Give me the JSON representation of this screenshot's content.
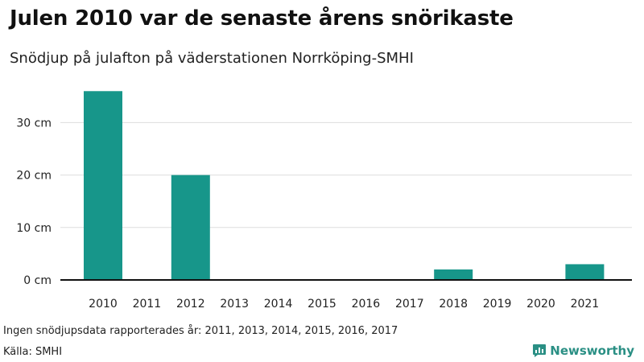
{
  "title": "Julen 2010 var de senaste årens snörikaste",
  "subtitle": "Snödjup på julafton på väderstationen Norrköping-SMHI",
  "note": "Ingen snödjupsdata rapporterades år: 2011, 2013, 2014, 2015, 2016, 2017",
  "source": "Källa: SMHI",
  "brand": {
    "name": "Newsworthy",
    "icon": "bar-chart-speech-icon",
    "color": "#2a8f84"
  },
  "colors": {
    "bar": "#17968a",
    "grid": "#dddddd",
    "axis": "#111111"
  },
  "chart_data": {
    "type": "bar",
    "title": "Julen 2010 var de senaste årens snörikaste",
    "subtitle": "Snödjup på julafton på väderstationen Norrköping-SMHI",
    "categories": [
      "2010",
      "2011",
      "2012",
      "2013",
      "2014",
      "2015",
      "2016",
      "2017",
      "2018",
      "2019",
      "2020",
      "2021"
    ],
    "values": [
      36,
      null,
      20,
      null,
      null,
      null,
      null,
      null,
      2,
      0,
      0,
      3
    ],
    "unit": "cm",
    "yticks": [
      0,
      10,
      20,
      30
    ],
    "ytick_labels": [
      "0 cm",
      "10 cm",
      "20 cm",
      "30 cm"
    ],
    "ylim": [
      0,
      40
    ],
    "grid": true,
    "xlabel": "",
    "ylabel": ""
  }
}
